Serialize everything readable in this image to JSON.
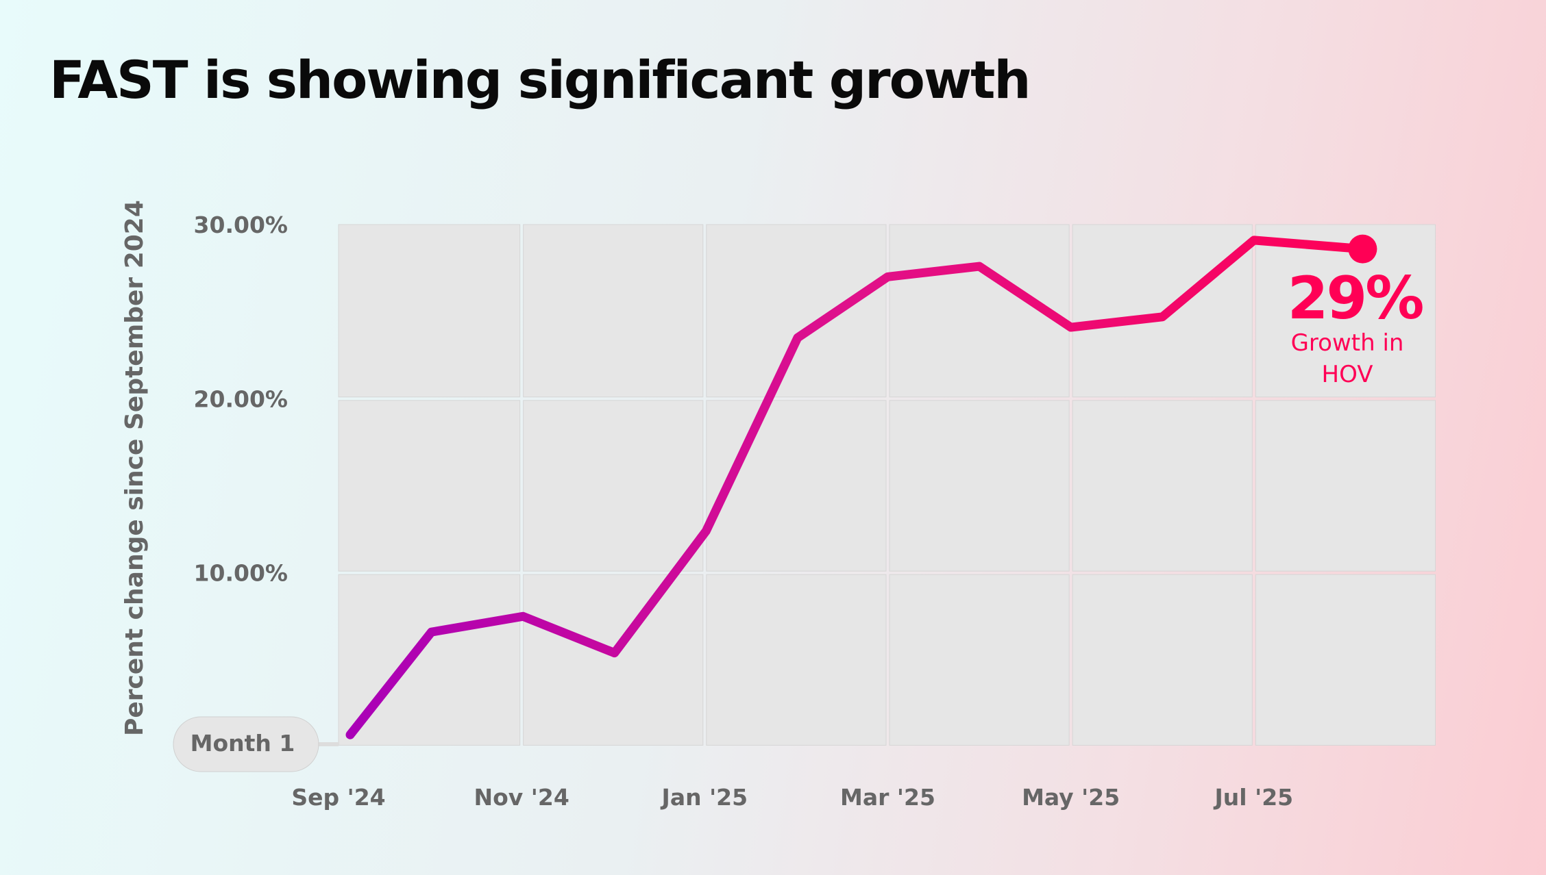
{
  "title": "FAST is showing significant growth",
  "chart_data": {
    "type": "line",
    "title": "FAST is showing significant growth",
    "xlabel": "",
    "ylabel": "Percent change since September 2024",
    "ylim": [
      0,
      30
    ],
    "yticks": [
      "10.00%",
      "20.00%",
      "30.00%"
    ],
    "xticks": [
      "Sep '24",
      "Nov '24",
      "Jan '25",
      "Mar '25",
      "May '25",
      "Jul '25"
    ],
    "x": [
      "Sep '24",
      "Oct '24",
      "Nov '24",
      "Dec '24",
      "Jan '25",
      "Feb '25",
      "Mar '25",
      "Apr '25",
      "May '25",
      "Jun '25",
      "Jul '25",
      "Aug '25"
    ],
    "series": [
      {
        "name": "HOV growth",
        "values": [
          0.7,
          6.6,
          7.5,
          5.4,
          12.4,
          23.5,
          27.0,
          27.6,
          24.1,
          24.7,
          29.1,
          28.6
        ]
      }
    ],
    "grid": true,
    "annotations": {
      "start_label": "Month 1",
      "end_value": "29%",
      "end_caption_1": "Growth in",
      "end_caption_2": "HOV"
    },
    "colors": {
      "start": "#a800b8",
      "end": "#ff0055",
      "panel": "#e6e6e6"
    }
  }
}
